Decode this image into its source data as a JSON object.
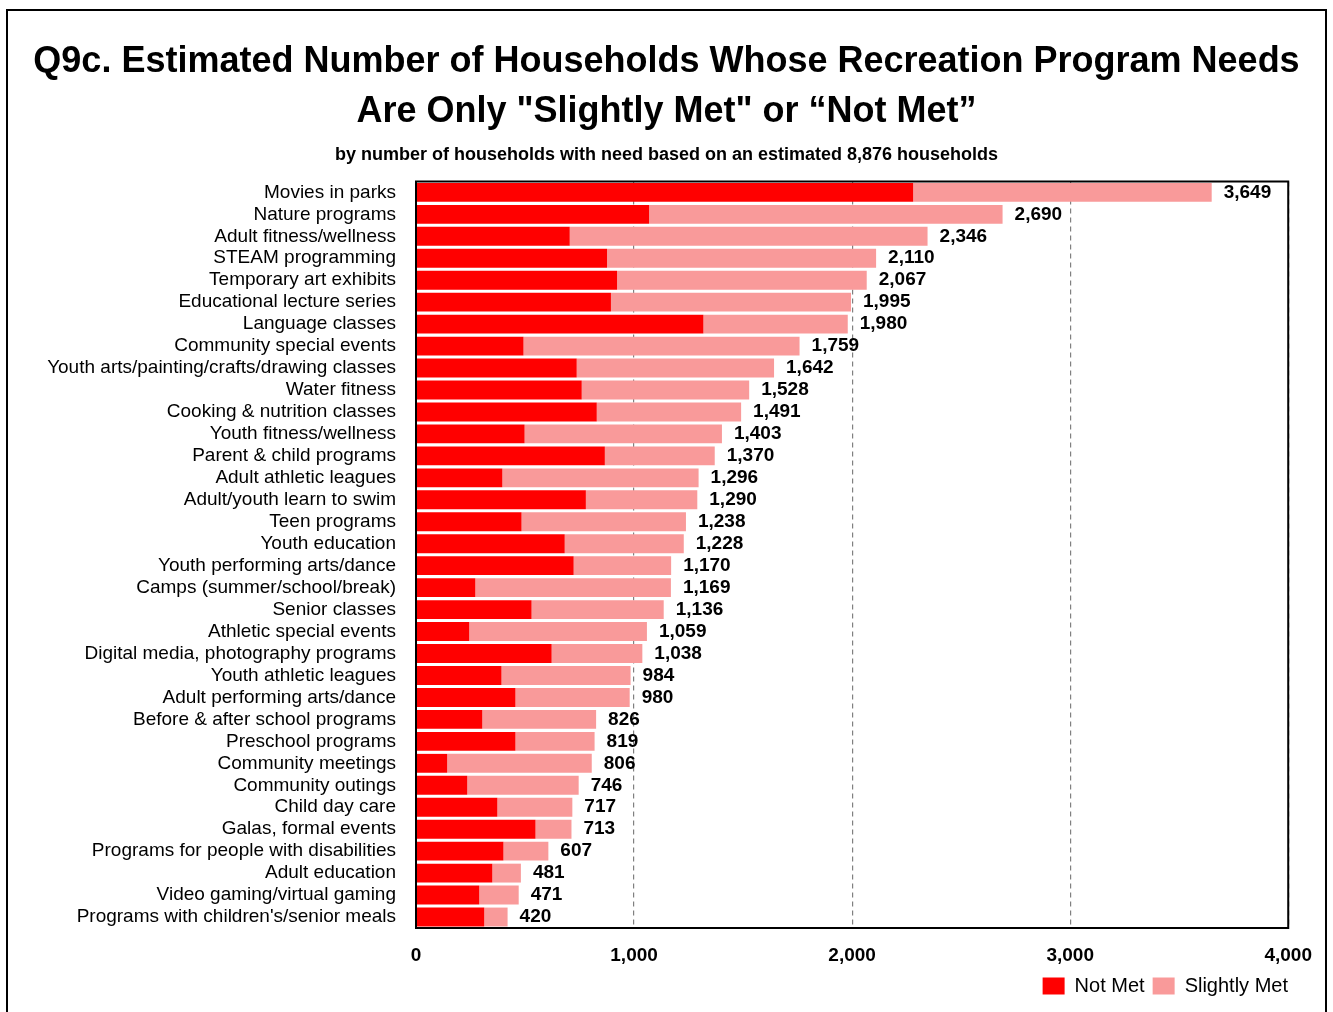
{
  "chart_data": {
    "type": "bar",
    "orientation": "horizontal",
    "stacked": true,
    "title": "Q9c. Estimated Number of Households Whose Recreation Program Needs Are Only \"Slightly Met\" or “Not Met”",
    "subtitle": "by number of households with need based on an estimated 8,876 households",
    "categories": [
      "Movies in parks",
      "Nature programs",
      "Adult fitness/wellness",
      "STEAM programming",
      "Temporary art exhibits",
      "Educational lecture series",
      "Language classes",
      "Community special events",
      "Youth arts/painting/crafts/drawing classes",
      "Water fitness",
      "Cooking & nutrition classes",
      "Youth fitness/wellness",
      "Parent & child programs",
      "Adult athletic leagues",
      "Adult/youth learn to swim",
      "Teen programs",
      "Youth education",
      "Youth performing arts/dance",
      "Camps (summer/school/break)",
      "Senior classes",
      "Athletic special events",
      "Digital media, photography programs",
      "Youth athletic leagues",
      "Adult performing arts/dance",
      "Before & after school programs",
      "Preschool programs",
      "Community meetings",
      "Community outings",
      "Child day care",
      "Galas, formal events",
      "Programs for people with disabilities",
      "Adult education",
      "Video gaming/virtual gaming",
      "Programs with children's/senior meals"
    ],
    "series": [
      {
        "name": "Not Met",
        "color": "#ff0000",
        "values": [
          2280,
          1069,
          705,
          876,
          922,
          894,
          1318,
          493,
          737,
          760,
          829,
          498,
          866,
          396,
          779,
          484,
          682,
          723,
          272,
          530,
          244,
          622,
          392,
          456,
          304,
          456,
          143,
          235,
          373,
          548,
          401,
          350,
          290,
          313
        ]
      },
      {
        "name": "Slightly Met",
        "color": "#f99a9a",
        "values": [
          1369,
          1621,
          1641,
          1234,
          1145,
          1101,
          662,
          1266,
          905,
          768,
          662,
          905,
          504,
          900,
          511,
          754,
          546,
          447,
          897,
          606,
          815,
          416,
          592,
          524,
          522,
          363,
          663,
          511,
          344,
          165,
          206,
          131,
          181,
          107
        ]
      }
    ],
    "totals": [
      "3,649",
      "2,690",
      "2,346",
      "2,110",
      "2,067",
      "1,995",
      "1,980",
      "1,759",
      "1,642",
      "1,528",
      "1,491",
      "1,403",
      "1,370",
      "1,296",
      "1,290",
      "1,238",
      "1,228",
      "1,170",
      "1,169",
      "1,136",
      "1,059",
      "1,038",
      "984",
      "980",
      "826",
      "819",
      "806",
      "746",
      "717",
      "713",
      "607",
      "481",
      "471",
      "420"
    ],
    "xlim": [
      0,
      4000
    ],
    "xticks": [
      0,
      {
        "value": 1000,
        "label": "1,000"
      },
      {
        "value": 2000,
        "label": "2,000"
      },
      {
        "value": 3000,
        "label": "3,000"
      },
      {
        "value": 4000,
        "label": "4,000"
      }
    ],
    "grid": "x",
    "legend": "bottom right"
  }
}
